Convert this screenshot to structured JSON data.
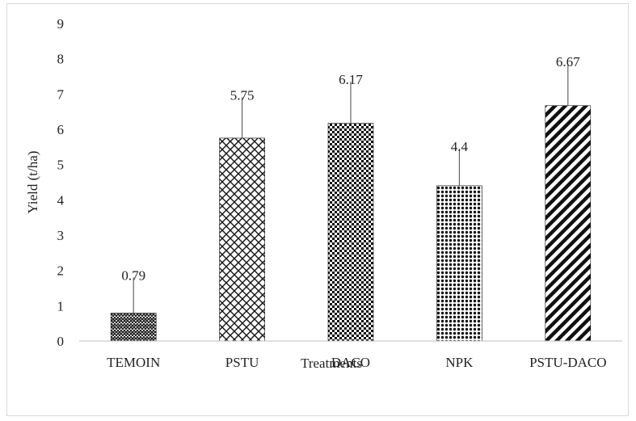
{
  "chart_data": {
    "type": "bar",
    "title": "",
    "xlabel": "Treatments",
    "ylabel": "Yield (t/ha)",
    "ylim": [
      0,
      9
    ],
    "yticks": [
      0,
      1,
      2,
      3,
      4,
      5,
      6,
      7,
      8,
      9
    ],
    "categories": [
      "TEMOIN",
      "PSTU",
      "DACO",
      "NPK",
      "PSTU-DACO"
    ],
    "values": [
      0.79,
      5.75,
      6.17,
      4.4,
      6.67
    ],
    "value_labels": [
      "0.79",
      "5.75",
      "6.17",
      "4.4",
      "6.67"
    ],
    "error_upper": [
      1.8,
      6.9,
      7.35,
      5.45,
      7.85
    ],
    "patterns": [
      "zigzag",
      "diamond-cross",
      "checker",
      "dots",
      "diagonal-stripes"
    ],
    "bar_color": "#111111",
    "grid": false,
    "legend": "none"
  }
}
